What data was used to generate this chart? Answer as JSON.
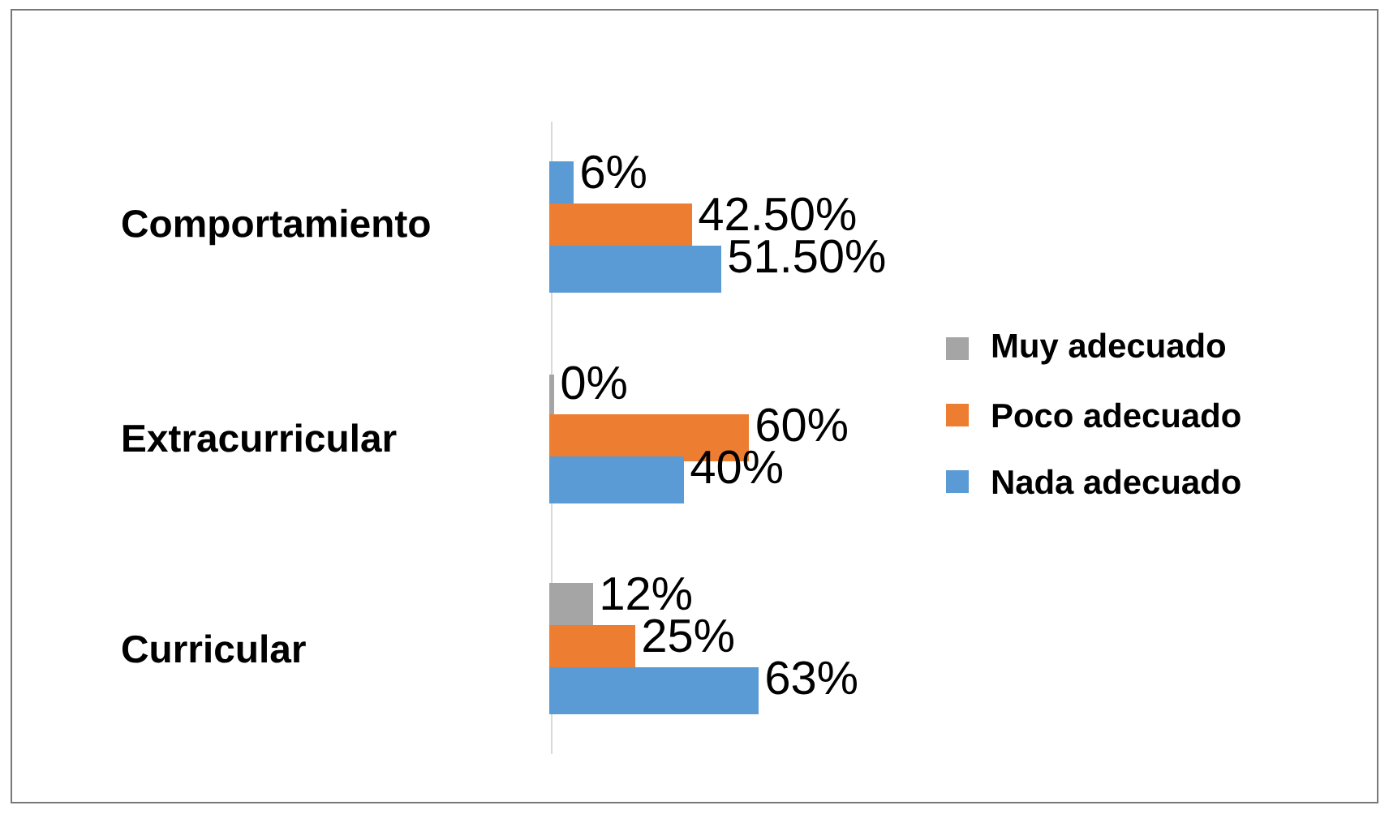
{
  "chart_data": {
    "type": "bar",
    "orientation": "horizontal",
    "categories": [
      "Comportamiento",
      "Extracurricular",
      "Curricular"
    ],
    "legend": "right",
    "series": [
      {
        "name": "Muy adecuado",
        "color": "#a5a5a5",
        "colors": [
          "#5b9bd5",
          "#a5a5a5",
          "#a5a5a5"
        ],
        "values": [
          6,
          0,
          12
        ],
        "value_labels": [
          "6%",
          "0%",
          "12%"
        ]
      },
      {
        "name": "Poco adecuado",
        "color": "#ed7d31",
        "values": [
          42.5,
          60,
          25
        ],
        "value_labels": [
          "42.50%",
          "60%",
          "25%"
        ]
      },
      {
        "name": "Nada adecuado",
        "color": "#5b9bd5",
        "values": [
          51.5,
          40,
          63
        ],
        "value_labels": [
          "51.50%",
          "40%",
          "63%"
        ]
      }
    ]
  }
}
